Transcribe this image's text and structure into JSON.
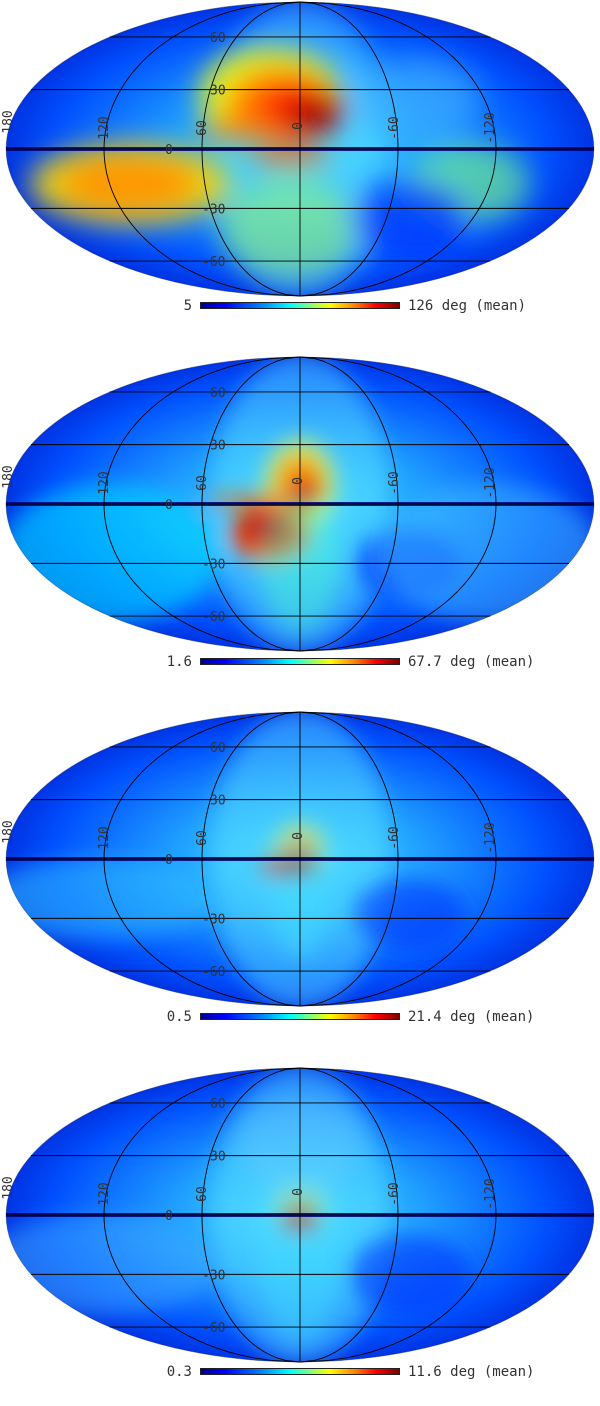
{
  "panels": [
    {
      "min_label": "5",
      "max_label": "126 deg (mean)"
    },
    {
      "min_label": "1.6",
      "max_label": "67.7 deg (mean)"
    },
    {
      "min_label": "0.5",
      "max_label": "21.4 deg (mean)"
    },
    {
      "min_label": "0.3",
      "max_label": "11.6 deg (mean)"
    }
  ],
  "graticule": {
    "lat_labels": [
      "60",
      "30",
      "0",
      "-30",
      "-60"
    ],
    "lon_labels": [
      "180",
      "120",
      "60",
      "0",
      "-60",
      "-120"
    ]
  },
  "colormap": "jet"
}
